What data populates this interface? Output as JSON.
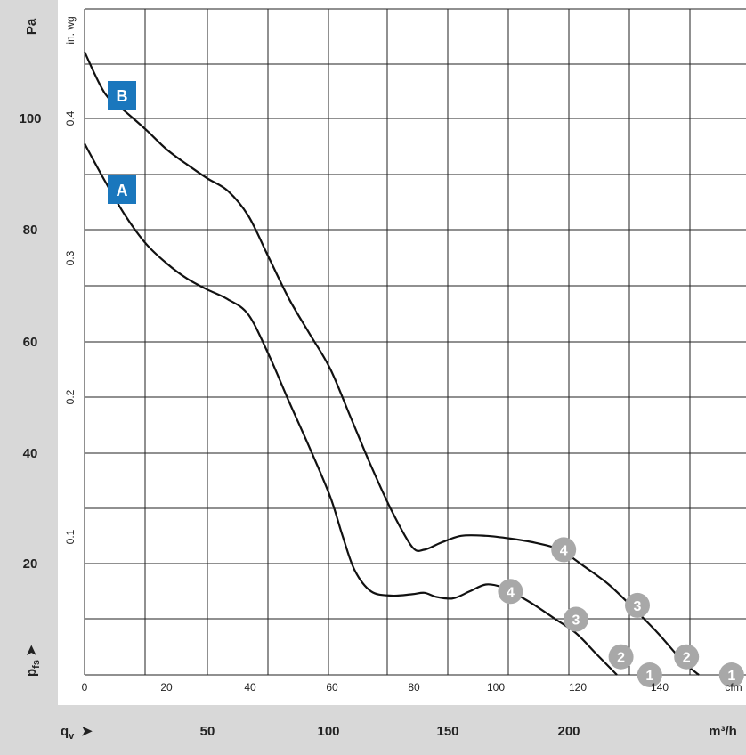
{
  "chart_data": {
    "type": "line",
    "xlabel": "qv",
    "x_unit_primary": "m³/h",
    "x_unit_secondary": "cfm",
    "ylabel": "pfs",
    "y_unit_primary": "Pa",
    "y_unit_secondary": "in. wg",
    "xlim_cfm": [
      0,
      150
    ],
    "ylim_inwg": [
      0,
      0.48
    ],
    "grid": true,
    "x_ticks_cfm": [
      "0",
      "20",
      "40",
      "60",
      "80",
      "100",
      "120",
      "140"
    ],
    "x_ticks_m3h": [
      "50",
      "100",
      "150",
      "200"
    ],
    "y_ticks_pa": [
      "20",
      "40",
      "60",
      "80",
      "100"
    ],
    "y_ticks_inwg": [
      "0.1",
      "0.2",
      "0.3",
      "0.4"
    ],
    "series": [
      {
        "name": "A",
        "color": "#111111",
        "points_cfm_inwg": [
          [
            0,
            0.382
          ],
          [
            5,
            0.355
          ],
          [
            10,
            0.33
          ],
          [
            15,
            0.31
          ],
          [
            20,
            0.296
          ],
          [
            25,
            0.285
          ],
          [
            30,
            0.277
          ],
          [
            35,
            0.27
          ],
          [
            40,
            0.259
          ],
          [
            45,
            0.23
          ],
          [
            50,
            0.196
          ],
          [
            55,
            0.163
          ],
          [
            60,
            0.128
          ],
          [
            63,
            0.1
          ],
          [
            66,
            0.075
          ],
          [
            70,
            0.06
          ],
          [
            75,
            0.057
          ],
          [
            80,
            0.058
          ],
          [
            83,
            0.059
          ],
          [
            86,
            0.056
          ],
          [
            90,
            0.055
          ],
          [
            94,
            0.06
          ],
          [
            98,
            0.065
          ],
          [
            102,
            0.063
          ],
          [
            106,
            0.057
          ],
          [
            110,
            0.05
          ],
          [
            115,
            0.04
          ],
          [
            120,
            0.03
          ],
          [
            125,
            0.015
          ],
          [
            130,
            0.0
          ]
        ],
        "markers": [
          {
            "label": "4",
            "x": 104,
            "y": 0.06
          },
          {
            "label": "3",
            "x": 120,
            "y": 0.04
          },
          {
            "label": "2",
            "x": 131,
            "y": 0.013
          },
          {
            "label": "1",
            "x": 138,
            "y": 0.0
          }
        ]
      },
      {
        "name": "B",
        "color": "#111111",
        "points_cfm_inwg": [
          [
            0,
            0.448
          ],
          [
            5,
            0.418
          ],
          [
            10,
            0.405
          ],
          [
            15,
            0.392
          ],
          [
            20,
            0.378
          ],
          [
            25,
            0.367
          ],
          [
            30,
            0.357
          ],
          [
            35,
            0.348
          ],
          [
            40,
            0.33
          ],
          [
            45,
            0.3
          ],
          [
            50,
            0.27
          ],
          [
            55,
            0.245
          ],
          [
            60,
            0.22
          ],
          [
            65,
            0.185
          ],
          [
            70,
            0.15
          ],
          [
            75,
            0.118
          ],
          [
            80,
            0.092
          ],
          [
            83,
            0.09
          ],
          [
            87,
            0.095
          ],
          [
            92,
            0.1
          ],
          [
            98,
            0.1
          ],
          [
            104,
            0.098
          ],
          [
            110,
            0.095
          ],
          [
            116,
            0.09
          ],
          [
            122,
            0.078
          ],
          [
            128,
            0.065
          ],
          [
            134,
            0.048
          ],
          [
            140,
            0.03
          ],
          [
            146,
            0.01
          ],
          [
            150,
            0.0
          ]
        ],
        "markers": [
          {
            "label": "4",
            "x": 117,
            "y": 0.09
          },
          {
            "label": "3",
            "x": 135,
            "y": 0.05
          },
          {
            "label": "2",
            "x": 147,
            "y": 0.013
          },
          {
            "label": "1",
            "x": 158,
            "y": 0.0
          }
        ]
      }
    ],
    "colors": {
      "background_strip": "#d8d8d8",
      "marker": "#a8a8a8",
      "curve_label": "#1a77bd"
    }
  }
}
